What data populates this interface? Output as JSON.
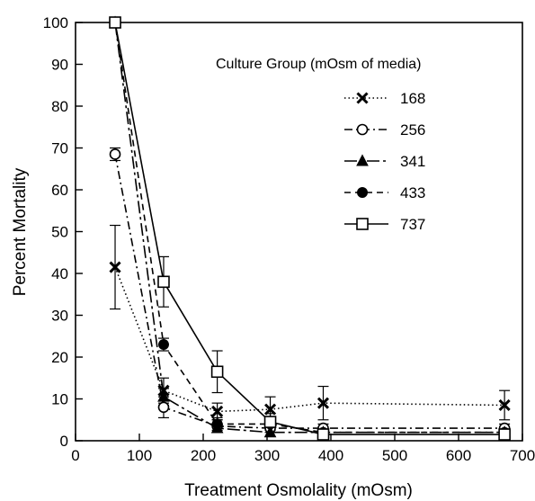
{
  "chart_data": {
    "type": "line",
    "xlabel": "Treatment Osmolality (mOsm)",
    "ylabel": "Percent Mortality",
    "xlim": [
      0,
      700
    ],
    "ylim": [
      0,
      100
    ],
    "xticks": [
      0,
      100,
      200,
      300,
      400,
      500,
      600,
      700
    ],
    "yticks": [
      0,
      10,
      20,
      30,
      40,
      50,
      60,
      70,
      80,
      90,
      100
    ],
    "legend_title": "Culture Group (mOsm of media)",
    "legend_position": "top-right",
    "grid": false,
    "series": [
      {
        "name": "168",
        "marker": "x",
        "dash": "dotted",
        "x": [
          62,
          138,
          222,
          305,
          388,
          672
        ],
        "y": [
          41.5,
          12,
          7,
          7.5,
          9,
          8.5
        ],
        "err": [
          10,
          3,
          2,
          3,
          4,
          3.5
        ]
      },
      {
        "name": "256",
        "marker": "open-circle",
        "dash": "dash-dot",
        "x": [
          62,
          138,
          222,
          305,
          388,
          672
        ],
        "y": [
          68.5,
          8,
          3.5,
          3,
          3,
          3
        ],
        "err": [
          1.5,
          2.5,
          1.5,
          1,
          1,
          1
        ]
      },
      {
        "name": "341",
        "marker": "filled-triangle",
        "dash": "long-dash-dot",
        "x": [
          62,
          138,
          222,
          305,
          388,
          672
        ],
        "y": [
          100,
          10.5,
          3,
          2,
          2,
          2
        ],
        "err": [
          0,
          2,
          1,
          1,
          1,
          1
        ]
      },
      {
        "name": "433",
        "marker": "filled-circle",
        "dash": "dashed",
        "x": [
          62,
          138,
          222,
          305,
          388,
          672
        ],
        "y": [
          100,
          23,
          4,
          4,
          2,
          2
        ],
        "err": [
          0,
          1.5,
          1.5,
          1.5,
          1,
          1
        ]
      },
      {
        "name": "737",
        "marker": "open-square",
        "dash": "solid",
        "x": [
          62,
          138,
          222,
          305,
          388,
          672
        ],
        "y": [
          100,
          38,
          16.5,
          4.5,
          1.5,
          1.5
        ],
        "err": [
          0,
          6,
          5,
          2,
          1,
          1
        ]
      }
    ]
  }
}
